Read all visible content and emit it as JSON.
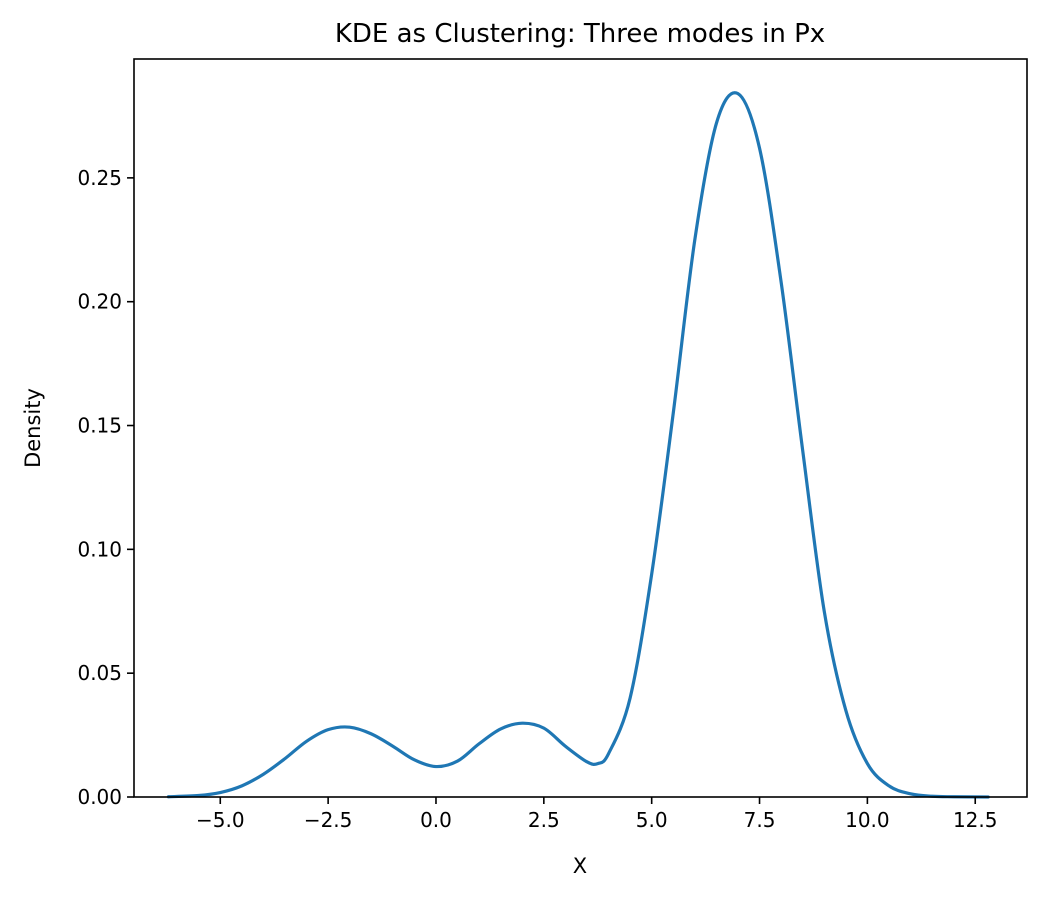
{
  "chart_data": {
    "type": "line",
    "title": "KDE as Clustering: Three modes in Px",
    "xlabel": "X",
    "ylabel": "Density",
    "xlim": [
      -7.0,
      13.7
    ],
    "ylim": [
      0.0,
      0.298
    ],
    "xticks": [
      -5.0,
      -2.5,
      0.0,
      2.5,
      5.0,
      7.5,
      10.0,
      12.5
    ],
    "xtick_labels": [
      "−5.0",
      "−2.5",
      "0.0",
      "2.5",
      "5.0",
      "7.5",
      "10.0",
      "12.5"
    ],
    "yticks": [
      0.0,
      0.05,
      0.1,
      0.15,
      0.2,
      0.25
    ],
    "ytick_labels": [
      "0.00",
      "0.05",
      "0.10",
      "0.15",
      "0.20",
      "0.25"
    ],
    "grid": false,
    "line_color": "#1f77b4",
    "series": [
      {
        "x": [
          -6.2,
          -5.5,
          -5.0,
          -4.5,
          -4.0,
          -3.5,
          -3.0,
          -2.5,
          -2.0,
          -1.5,
          -1.0,
          -0.5,
          0.0,
          0.5,
          1.0,
          1.5,
          2.0,
          2.5,
          3.0,
          3.5,
          3.75,
          4.0,
          4.5,
          5.0,
          5.5,
          6.0,
          6.5,
          7.0,
          7.5,
          8.0,
          8.5,
          9.0,
          9.5,
          10.0,
          10.5,
          11.0,
          11.5,
          12.0,
          12.8
        ],
        "y": [
          0.0001,
          0.0006,
          0.0018,
          0.0045,
          0.0092,
          0.0155,
          0.0225,
          0.0272,
          0.0282,
          0.0255,
          0.0205,
          0.015,
          0.0123,
          0.0145,
          0.0215,
          0.0275,
          0.0298,
          0.0278,
          0.0205,
          0.0142,
          0.0135,
          0.0175,
          0.04,
          0.09,
          0.155,
          0.225,
          0.272,
          0.284,
          0.262,
          0.208,
          0.14,
          0.075,
          0.035,
          0.0135,
          0.0045,
          0.0013,
          0.0003,
          0.0001,
          0.0
        ]
      }
    ]
  }
}
